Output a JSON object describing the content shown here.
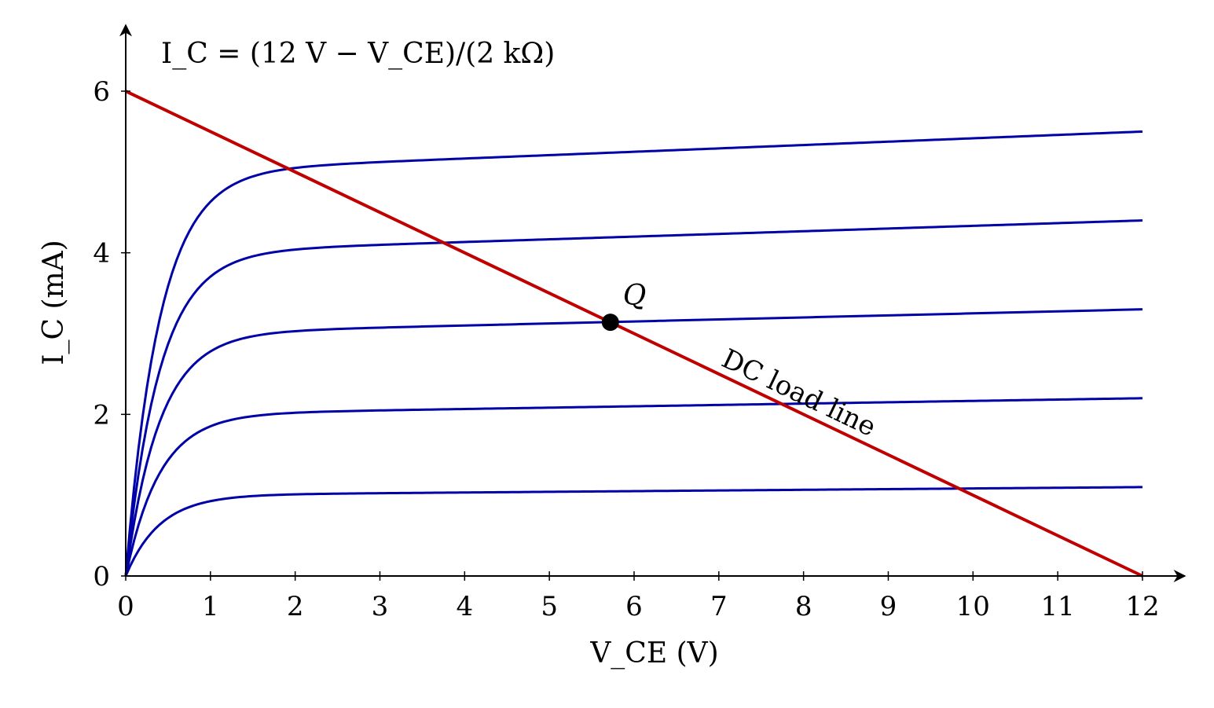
{
  "chart_data": {
    "type": "line",
    "formula": "I_C = (12 V − V_CE)/(2 kΩ)",
    "xlabel": "V_CE (V)",
    "ylabel": "I_C (mA)",
    "xlim": [
      0,
      12.5
    ],
    "ylim": [
      0,
      6.8
    ],
    "x_ticks": [
      0,
      1,
      2,
      3,
      4,
      5,
      6,
      7,
      8,
      9,
      10,
      11,
      12
    ],
    "y_ticks": [
      0,
      2,
      4,
      6
    ],
    "grid": false,
    "curve_color": "#0000a8",
    "load_line_color": "#c00000",
    "series": [
      {
        "saturation_current_mA": 1.0,
        "current_at_12V_mA": 1.1
      },
      {
        "saturation_current_mA": 2.0,
        "current_at_12V_mA": 2.2
      },
      {
        "saturation_current_mA": 3.0,
        "current_at_12V_mA": 3.3
      },
      {
        "saturation_current_mA": 4.0,
        "current_at_12V_mA": 4.4
      },
      {
        "saturation_current_mA": 5.0,
        "current_at_12V_mA": 5.5
      }
    ],
    "load_line": {
      "label": "DC load line",
      "points": [
        [
          0,
          6
        ],
        [
          12,
          0
        ]
      ]
    },
    "q_point": {
      "label": "Q",
      "x": 5.72,
      "y": 3.14
    }
  }
}
